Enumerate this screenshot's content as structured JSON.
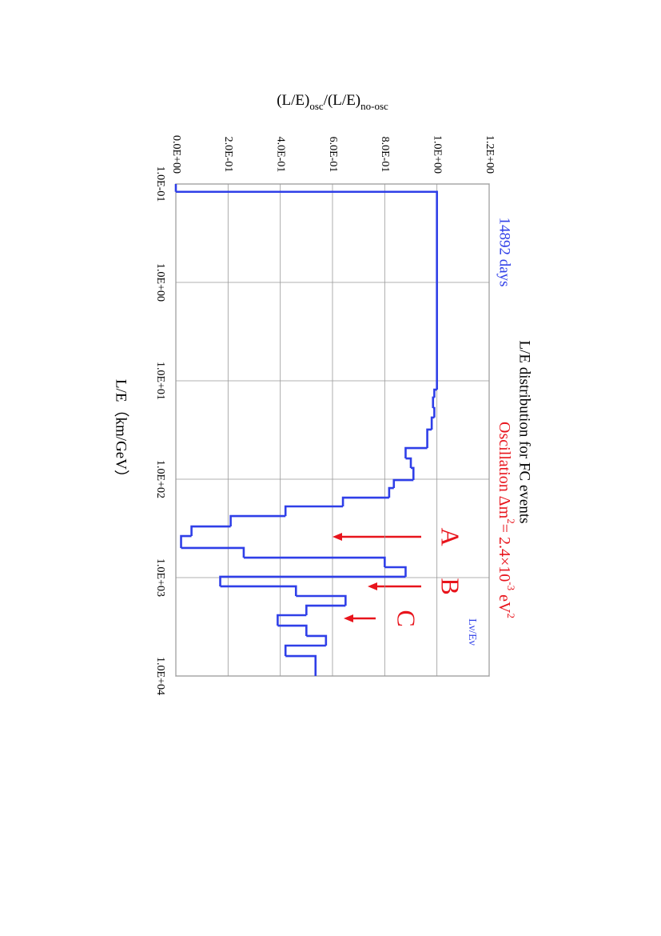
{
  "chart_data": {
    "type": "histogram",
    "title": "L/E distribution for FC events",
    "subtitle": "14892 days",
    "annotation": [
      "Oscillation Δm",
      "2",
      "= 2.4×10",
      "-3",
      " eV",
      "2"
    ],
    "marks_label": "Lν/Eν",
    "arrow_labels": [
      "A",
      "B",
      "C"
    ],
    "x_label": "L/E（km/GeV）",
    "y_label": [
      "(L/E)",
      "osc",
      "/(L/E)",
      "no-osc"
    ],
    "log_x": true,
    "grid": true,
    "color": "#2f3fe8",
    "bins": [
      0.1,
      0.12,
      12.3,
      14.8,
      18.9,
      23.6,
      31.3,
      48.2,
      61.5,
      76.9,
      102,
      123,
      154,
      189,
      237,
      302,
      378,
      500,
      627,
      784,
      981,
      1228,
      1538,
      1928,
      2410,
      3076,
      3920,
      4910,
      6270,
      10000
    ],
    "values": [
      0,
      1.0,
      0.99,
      0.985,
      0.99,
      0.98,
      0.963,
      0.88,
      0.9,
      0.91,
      0.835,
      0.817,
      0.64,
      0.42,
      0.21,
      0.06,
      0.02,
      0.26,
      0.8,
      0.88,
      0.17,
      0.46,
      0.65,
      0.5,
      0.39,
      0.5,
      0.575,
      0.42,
      0.535
    ],
    "xlim": [
      0.1,
      10000
    ],
    "xticks": [
      {
        "value": 0.1,
        "label": "1.0E-01"
      },
      {
        "value": 1,
        "label": "1.0E+00"
      },
      {
        "value": 10,
        "label": "1.0E+01"
      },
      {
        "value": 100,
        "label": "1.0E+02"
      },
      {
        "value": 1000,
        "label": "1.0E+03"
      },
      {
        "value": 10000,
        "label": "1.0E+04"
      }
    ],
    "ylim": [
      0,
      1.2
    ],
    "yticks": [
      {
        "value": 0,
        "label": "0.0E+00"
      },
      {
        "value": 0.2,
        "label": "2.0E-01"
      },
      {
        "value": 0.4,
        "label": "4.0E-01"
      },
      {
        "value": 0.6,
        "label": "6.0E-01"
      },
      {
        "value": 0.8,
        "label": "8.0E-01"
      },
      {
        "value": 1.0,
        "label": "1.0E+00"
      },
      {
        "value": 1.2,
        "label": "1.2E+00"
      }
    ]
  }
}
